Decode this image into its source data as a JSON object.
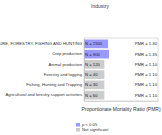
{
  "chart_data": {
    "type": "bar",
    "orientation": "horizontal",
    "title": "Industry",
    "x_label": "Proportionate Mortality Ratio (PMR)",
    "categories": [
      "AGRICULTURE, FORESTRY, FISHING AND HUNTING",
      "Crop production",
      "Animal production",
      "Forestry and logging",
      "Fishing, Hunting and Trapping",
      "Agricultural and forestry support activities"
    ],
    "series": [
      {
        "name": "Not significant",
        "color": "#cccccc",
        "values": [
          null,
          null,
          1.1,
          1.1,
          1.1,
          1.1
        ],
        "value_labels": [
          null,
          null,
          "PMR = 1.10",
          "PMR = 1.10",
          "PMR = 1.10",
          "PMR = 1.10"
        ],
        "count_labels": [
          null,
          null,
          "N = 120",
          "N = 40",
          "N = 30",
          "N = 60"
        ]
      },
      {
        "name": "p < 0.05",
        "color": "#9999ff",
        "values": [
          1.3,
          1.35,
          null,
          null,
          null,
          null
        ],
        "value_labels": [
          "PMR = 1.30",
          "PMR = 1.35",
          null,
          null,
          null,
          null
        ],
        "count_labels": [
          "N = 1500",
          "N = 900",
          null,
          null,
          null,
          null
        ]
      }
    ],
    "xlim": [
      0,
      4
    ],
    "tick_labels": "y",
    "data_labels": true,
    "legend": "bottom-left"
  }
}
